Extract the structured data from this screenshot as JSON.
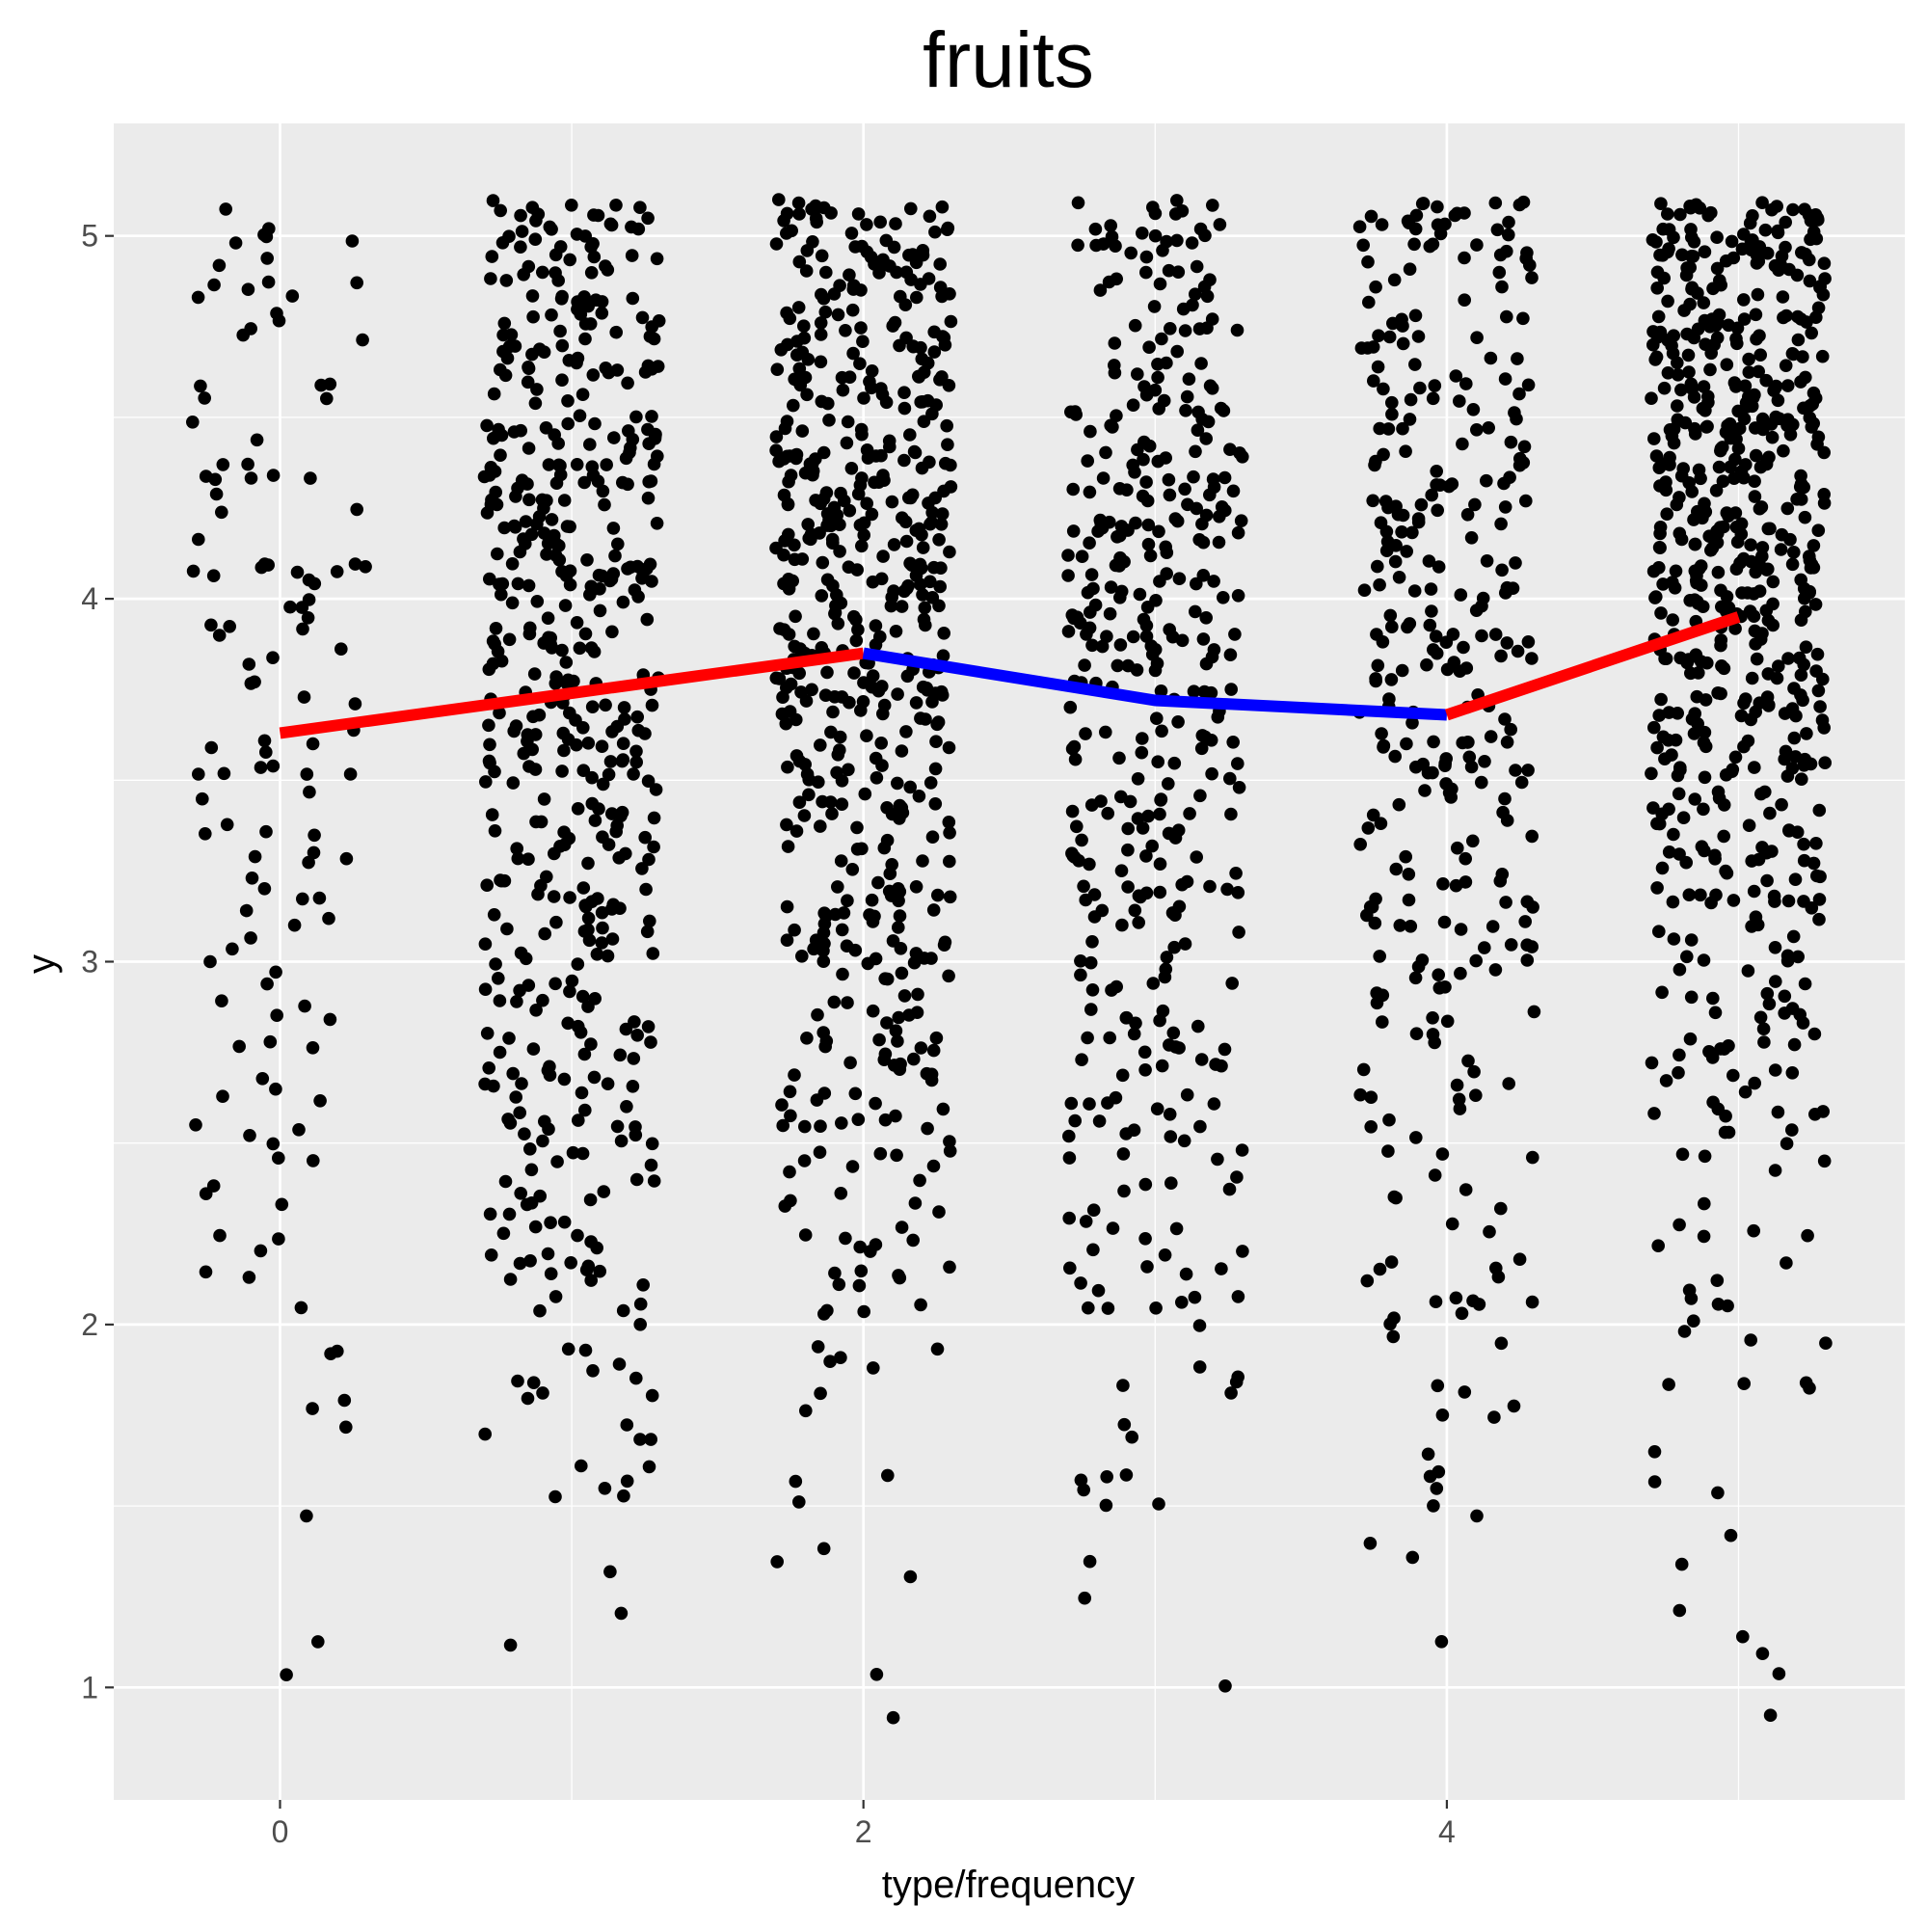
{
  "chart_data": {
    "type": "scatter",
    "title": "fruits",
    "xlabel": "type/frequency",
    "ylabel": "y",
    "xlim": [
      -0.57,
      5.57
    ],
    "ylim": [
      0.69,
      5.31
    ],
    "x_ticks": [
      0,
      2,
      4
    ],
    "x_tick_labels": [
      "0",
      "2",
      "4"
    ],
    "y_ticks": [
      1,
      2,
      3,
      4,
      5
    ],
    "y_tick_labels": [
      "1",
      "2",
      "3",
      "4",
      "5"
    ],
    "grid": true,
    "legend": "none",
    "colors": {
      "panel_background": "#ebebeb",
      "grid": "#ffffff",
      "points": "#000000",
      "line_red": "#ff0000",
      "line_blue": "#0000ff"
    },
    "points": {
      "groups": [
        {
          "x": 0,
          "n": 130,
          "jitter": 0.3,
          "distribution": [
            [
              0.9,
              1.2,
              2
            ],
            [
              1.2,
              1.5,
              1
            ],
            [
              1.5,
              2.0,
              5
            ],
            [
              2.0,
              2.5,
              12
            ],
            [
              2.5,
              3.0,
              16
            ],
            [
              3.0,
              3.5,
              20
            ],
            [
              3.5,
              4.0,
              26
            ],
            [
              4.0,
              4.5,
              24
            ],
            [
              4.5,
              5.1,
              24
            ]
          ]
        },
        {
          "x": 1,
          "n": 520,
          "jitter": 0.3,
          "distribution": [
            [
              0.9,
              1.2,
              1
            ],
            [
              1.2,
              1.5,
              2
            ],
            [
              1.5,
              2.0,
              20
            ],
            [
              2.0,
              2.5,
              42
            ],
            [
              2.5,
              3.0,
              60
            ],
            [
              3.0,
              3.5,
              75
            ],
            [
              3.5,
              4.0,
              95
            ],
            [
              4.0,
              4.5,
              120
            ],
            [
              4.5,
              5.1,
              105
            ]
          ]
        },
        {
          "x": 2,
          "n": 580,
          "jitter": 0.3,
          "distribution": [
            [
              0.9,
              1.2,
              2
            ],
            [
              1.2,
              1.5,
              3
            ],
            [
              1.5,
              2.0,
              10
            ],
            [
              2.0,
              2.5,
              32
            ],
            [
              2.5,
              3.0,
              55
            ],
            [
              3.0,
              3.5,
              85
            ],
            [
              3.5,
              4.0,
              110
            ],
            [
              4.0,
              4.5,
              145
            ],
            [
              4.5,
              5.1,
              138
            ]
          ]
        },
        {
          "x": 3,
          "n": 400,
          "jitter": 0.3,
          "distribution": [
            [
              0.9,
              1.2,
              1
            ],
            [
              1.2,
              1.5,
              2
            ],
            [
              1.5,
              2.0,
              14
            ],
            [
              2.0,
              2.5,
              30
            ],
            [
              2.5,
              3.0,
              48
            ],
            [
              3.0,
              3.5,
              62
            ],
            [
              3.5,
              4.0,
              75
            ],
            [
              4.0,
              4.5,
              92
            ],
            [
              4.5,
              5.1,
              76
            ]
          ]
        },
        {
          "x": 4,
          "n": 330,
          "jitter": 0.3,
          "distribution": [
            [
              1.1,
              1.5,
              4
            ],
            [
              1.5,
              2.0,
              12
            ],
            [
              2.0,
              2.5,
              24
            ],
            [
              2.5,
              3.0,
              30
            ],
            [
              3.0,
              3.5,
              50
            ],
            [
              3.5,
              4.0,
              66
            ],
            [
              4.0,
              4.5,
              68
            ],
            [
              4.5,
              5.1,
              76
            ]
          ]
        },
        {
          "x": 5,
          "n": 640,
          "jitter": 0.3,
          "distribution": [
            [
              0.9,
              1.2,
              4
            ],
            [
              1.2,
              1.5,
              3
            ],
            [
              1.5,
              2.0,
              10
            ],
            [
              2.0,
              2.5,
              18
            ],
            [
              2.5,
              3.0,
              45
            ],
            [
              3.0,
              3.5,
              75
            ],
            [
              3.5,
              4.0,
              125
            ],
            [
              4.0,
              4.5,
              170
            ],
            [
              4.5,
              5.1,
              190
            ]
          ]
        }
      ]
    },
    "lines": [
      {
        "color": "#ff0000",
        "points": [
          [
            0,
            3.63
          ],
          [
            1,
            3.74
          ],
          [
            2,
            3.85
          ]
        ]
      },
      {
        "color": "#0000ff",
        "points": [
          [
            2,
            3.85
          ],
          [
            3,
            3.72
          ],
          [
            4,
            3.68
          ]
        ]
      },
      {
        "color": "#ff0000",
        "points": [
          [
            4,
            3.68
          ],
          [
            5,
            3.95
          ]
        ]
      }
    ]
  }
}
